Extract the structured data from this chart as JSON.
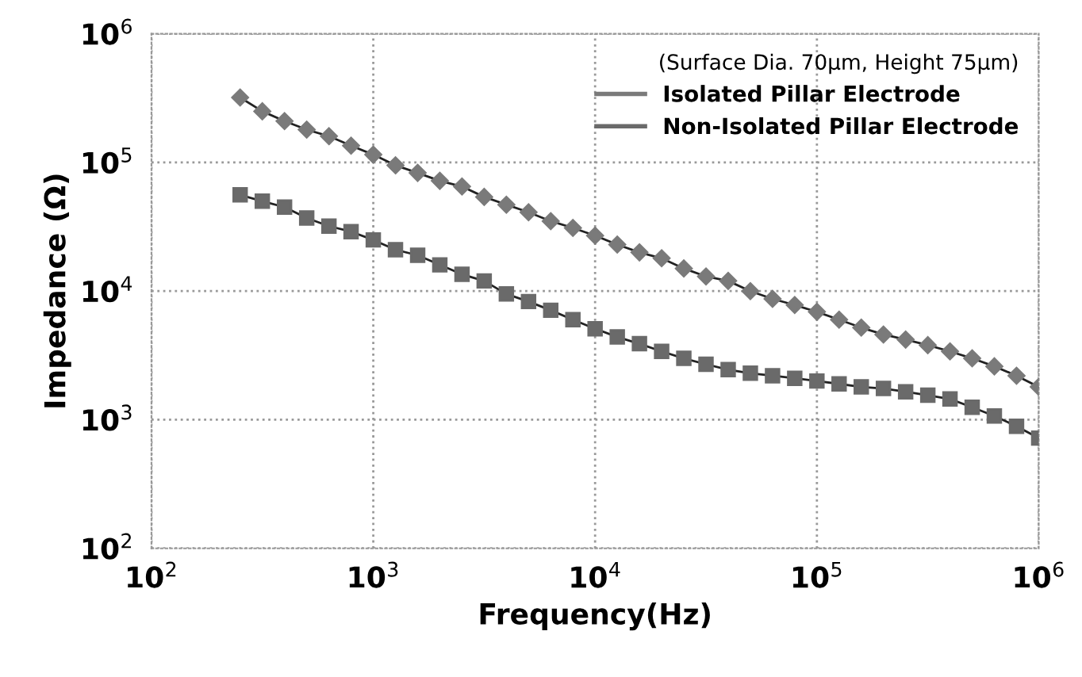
{
  "chart_data": {
    "type": "line",
    "xlabel": "Frequency(Hz)",
    "ylabel": "Impedance (Ω)",
    "legend_title": "(Surface Dia. 70µm, Height 75µm)",
    "legend": "top right",
    "grid": true,
    "log": "xy",
    "x": [
      251,
      316,
      398,
      501,
      631,
      794,
      1000,
      1259,
      1585,
      1995,
      2512,
      3162,
      3981,
      5012,
      6310,
      7943,
      10000,
      12589,
      15849,
      19953,
      25119,
      31623,
      39811,
      50119,
      63096,
      79433,
      100000,
      125893,
      158489,
      199526,
      251189,
      316228,
      398107,
      501187,
      630957,
      794328,
      1000000
    ],
    "xlim": [
      100,
      1000000
    ],
    "ylim": [
      100,
      1000000
    ],
    "xticks": [
      {
        "value": 100,
        "label": "10$^{2}$"
      },
      {
        "value": 1000,
        "label": "10$^{3}$"
      },
      {
        "value": 10000,
        "label": "10$^{4}$"
      },
      {
        "value": 100000,
        "label": "10$^{5}$"
      },
      {
        "value": 1000000,
        "label": "10$^{6}$"
      }
    ],
    "yticks": [
      {
        "value": 100,
        "label": "10$^{2}$"
      },
      {
        "value": 1000,
        "label": "10$^{3}$"
      },
      {
        "value": 10000,
        "label": "10$^{4}$"
      },
      {
        "value": 100000,
        "label": "10$^{5}$"
      },
      {
        "value": 1000000,
        "label": "10$^{6}$"
      }
    ],
    "series": [
      {
        "name": "Isolated Pillar Electrode",
        "color": "#7a7a7a",
        "marker": "diamond",
        "values": [
          320000,
          250000,
          210000,
          180000,
          160000,
          135000,
          115000,
          95000,
          83000,
          72000,
          65000,
          54000,
          47000,
          41000,
          35000,
          31000,
          27000,
          23000,
          20000,
          18000,
          15000,
          13000,
          12000,
          10000,
          8700,
          7800,
          6900,
          6000,
          5200,
          4600,
          4200,
          3800,
          3400,
          3000,
          2600,
          2200,
          1800
        ]
      },
      {
        "name": "Non-Isolated Pillar Electrode",
        "color": "#6a6a6a",
        "marker": "square",
        "values": [
          56000,
          50000,
          45000,
          37000,
          32000,
          29000,
          25000,
          21000,
          19000,
          16000,
          13500,
          12000,
          9500,
          8300,
          7100,
          6000,
          5100,
          4400,
          3900,
          3400,
          3000,
          2700,
          2450,
          2300,
          2200,
          2100,
          2000,
          1900,
          1800,
          1750,
          1650,
          1550,
          1450,
          1250,
          1070,
          890,
          720
        ]
      }
    ]
  }
}
